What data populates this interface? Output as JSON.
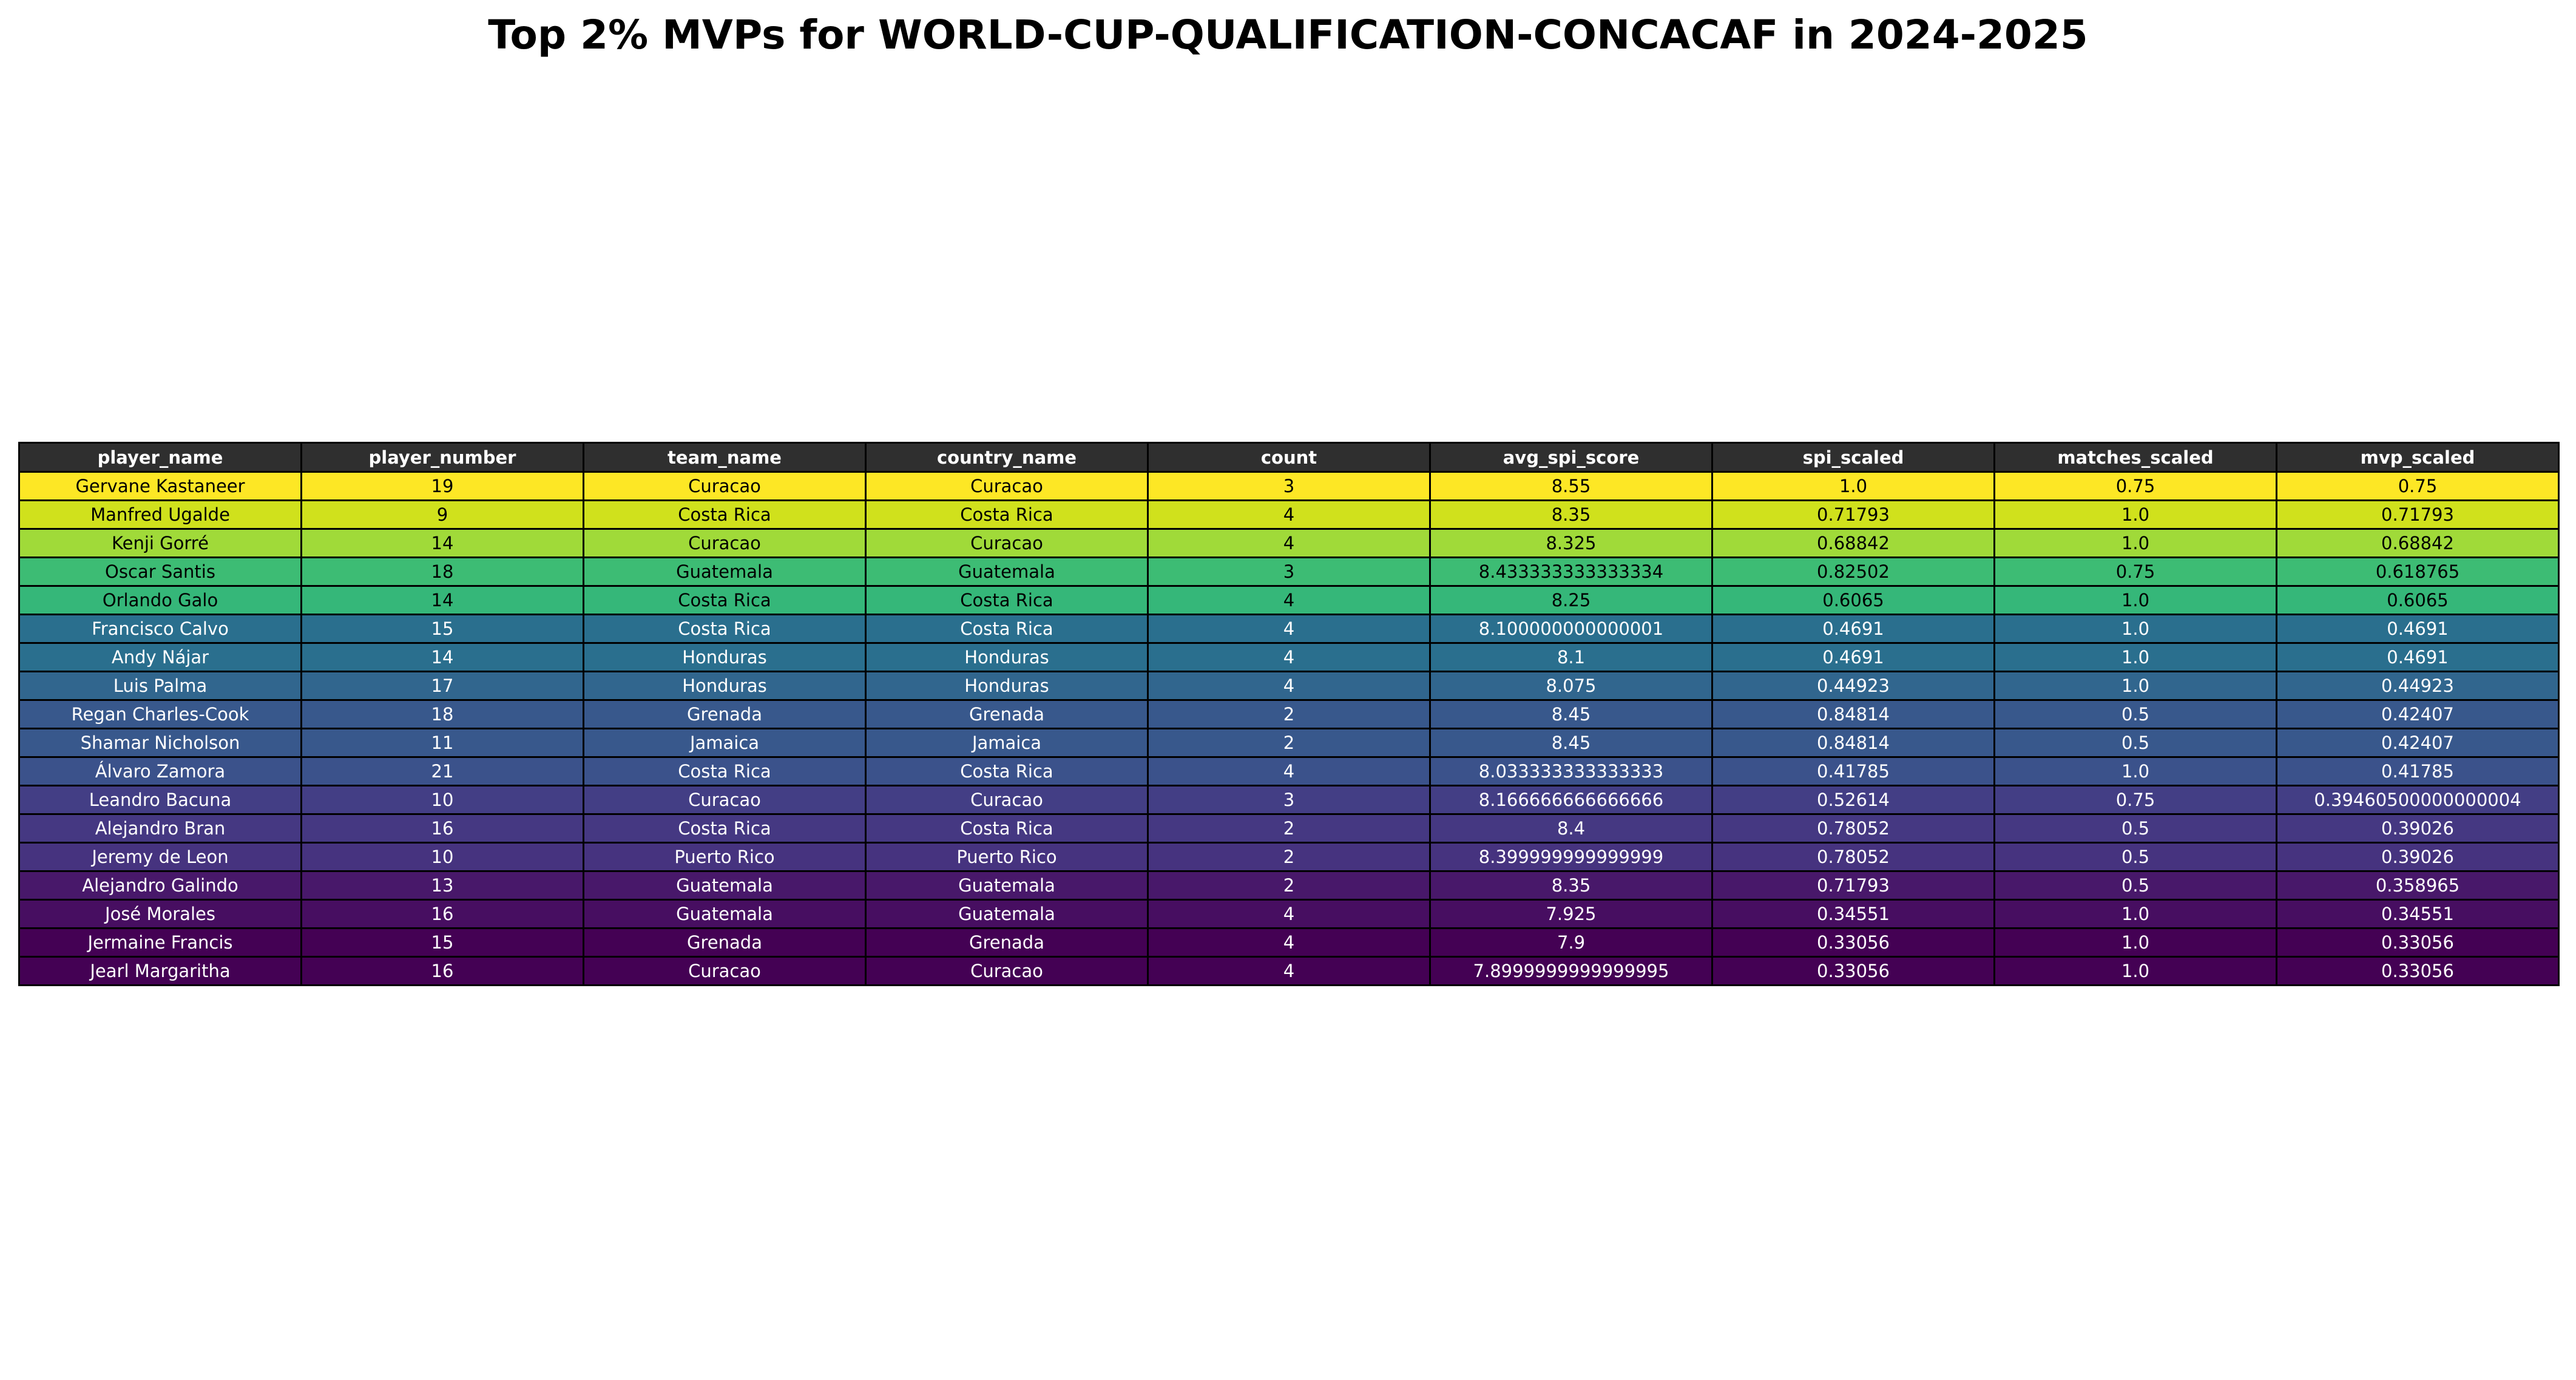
{
  "chart_data": {
    "type": "table",
    "title": "Top 2% MVPs for WORLD-CUP-QUALIFICATION-CONCACAF in 2024-2025",
    "header_color": "#2f2f2f",
    "colormap": "viridis",
    "columns": [
      "player_name",
      "player_number",
      "team_name",
      "country_name",
      "count",
      "avg_spi_score",
      "spi_scaled",
      "matches_scaled",
      "mvp_scaled"
    ],
    "rows": [
      {
        "cells": [
          "Gervane Kastaneer",
          "19",
          "Curacao",
          "Curacao",
          "3",
          "8.55",
          "1.0",
          "0.75",
          "0.75"
        ],
        "color": "#fde725",
        "text_color": "#000000"
      },
      {
        "cells": [
          "Manfred Ugalde",
          "9",
          "Costa Rica",
          "Costa Rica",
          "4",
          "8.35",
          "0.71793",
          "1.0",
          "0.71793"
        ],
        "color": "#d0e11c",
        "text_color": "#000000"
      },
      {
        "cells": [
          "Kenji Gorré",
          "14",
          "Curacao",
          "Curacao",
          "4",
          "8.325",
          "0.68842",
          "1.0",
          "0.68842"
        ],
        "color": "#a0da39",
        "text_color": "#000000"
      },
      {
        "cells": [
          "Oscar Santis",
          "18",
          "Guatemala",
          "Guatemala",
          "3",
          "8.433333333333334",
          "0.82502",
          "0.75",
          "0.618765"
        ],
        "color": "#3dbc74",
        "text_color": "#000000"
      },
      {
        "cells": [
          "Orlando Galo",
          "14",
          "Costa Rica",
          "Costa Rica",
          "4",
          "8.25",
          "0.6065",
          "1.0",
          "0.6065"
        ],
        "color": "#35b779",
        "text_color": "#000000"
      },
      {
        "cells": [
          "Francisco Calvo",
          "15",
          "Costa Rica",
          "Costa Rica",
          "4",
          "8.100000000000001",
          "0.4691",
          "1.0",
          "0.4691"
        ],
        "color": "#2a6f8e",
        "text_color": "#ffffff"
      },
      {
        "cells": [
          "Andy Nájar",
          "14",
          "Honduras",
          "Honduras",
          "4",
          "8.1",
          "0.4691",
          "1.0",
          "0.4691"
        ],
        "color": "#2a6f8e",
        "text_color": "#ffffff"
      },
      {
        "cells": [
          "Luis Palma",
          "17",
          "Honduras",
          "Honduras",
          "4",
          "8.075",
          "0.44923",
          "1.0",
          "0.44923"
        ],
        "color": "#31668e",
        "text_color": "#ffffff"
      },
      {
        "cells": [
          "Regan Charles-Cook",
          "18",
          "Grenada",
          "Grenada",
          "2",
          "8.45",
          "0.84814",
          "0.5",
          "0.42407"
        ],
        "color": "#38588c",
        "text_color": "#ffffff"
      },
      {
        "cells": [
          "Shamar Nicholson",
          "11",
          "Jamaica",
          "Jamaica",
          "2",
          "8.45",
          "0.84814",
          "0.5",
          "0.42407"
        ],
        "color": "#38588c",
        "text_color": "#ffffff"
      },
      {
        "cells": [
          "Álvaro Zamora",
          "21",
          "Costa Rica",
          "Costa Rica",
          "4",
          "8.033333333333333",
          "0.41785",
          "1.0",
          "0.41785"
        ],
        "color": "#3b528b",
        "text_color": "#ffffff"
      },
      {
        "cells": [
          "Leandro Bacuna",
          "10",
          "Curacao",
          "Curacao",
          "3",
          "8.166666666666666",
          "0.52614",
          "0.75",
          "0.39460500000000004"
        ],
        "color": "#433e85",
        "text_color": "#ffffff"
      },
      {
        "cells": [
          "Alejandro Bran",
          "16",
          "Costa Rica",
          "Costa Rica",
          "2",
          "8.4",
          "0.78052",
          "0.5",
          "0.39026"
        ],
        "color": "#453882",
        "text_color": "#ffffff"
      },
      {
        "cells": [
          "Jeremy de Leon",
          "10",
          "Puerto Rico",
          "Puerto Rico",
          "2",
          "8.399999999999999",
          "0.78052",
          "0.5",
          "0.39026"
        ],
        "color": "#46337f",
        "text_color": "#ffffff"
      },
      {
        "cells": [
          "Alejandro Galindo",
          "13",
          "Guatemala",
          "Guatemala",
          "2",
          "8.35",
          "0.71793",
          "0.5",
          "0.358965"
        ],
        "color": "#48186a",
        "text_color": "#ffffff"
      },
      {
        "cells": [
          "José Morales",
          "16",
          "Guatemala",
          "Guatemala",
          "4",
          "7.925",
          "0.34551",
          "1.0",
          "0.34551"
        ],
        "color": "#470e61",
        "text_color": "#ffffff"
      },
      {
        "cells": [
          "Jermaine Francis",
          "15",
          "Grenada",
          "Grenada",
          "4",
          "7.9",
          "0.33056",
          "1.0",
          "0.33056"
        ],
        "color": "#440154",
        "text_color": "#ffffff"
      },
      {
        "cells": [
          "Jearl Margaritha",
          "16",
          "Curacao",
          "Curacao",
          "4",
          "7.8999999999999995",
          "0.33056",
          "1.0",
          "0.33056"
        ],
        "color": "#440154",
        "text_color": "#ffffff"
      }
    ]
  }
}
